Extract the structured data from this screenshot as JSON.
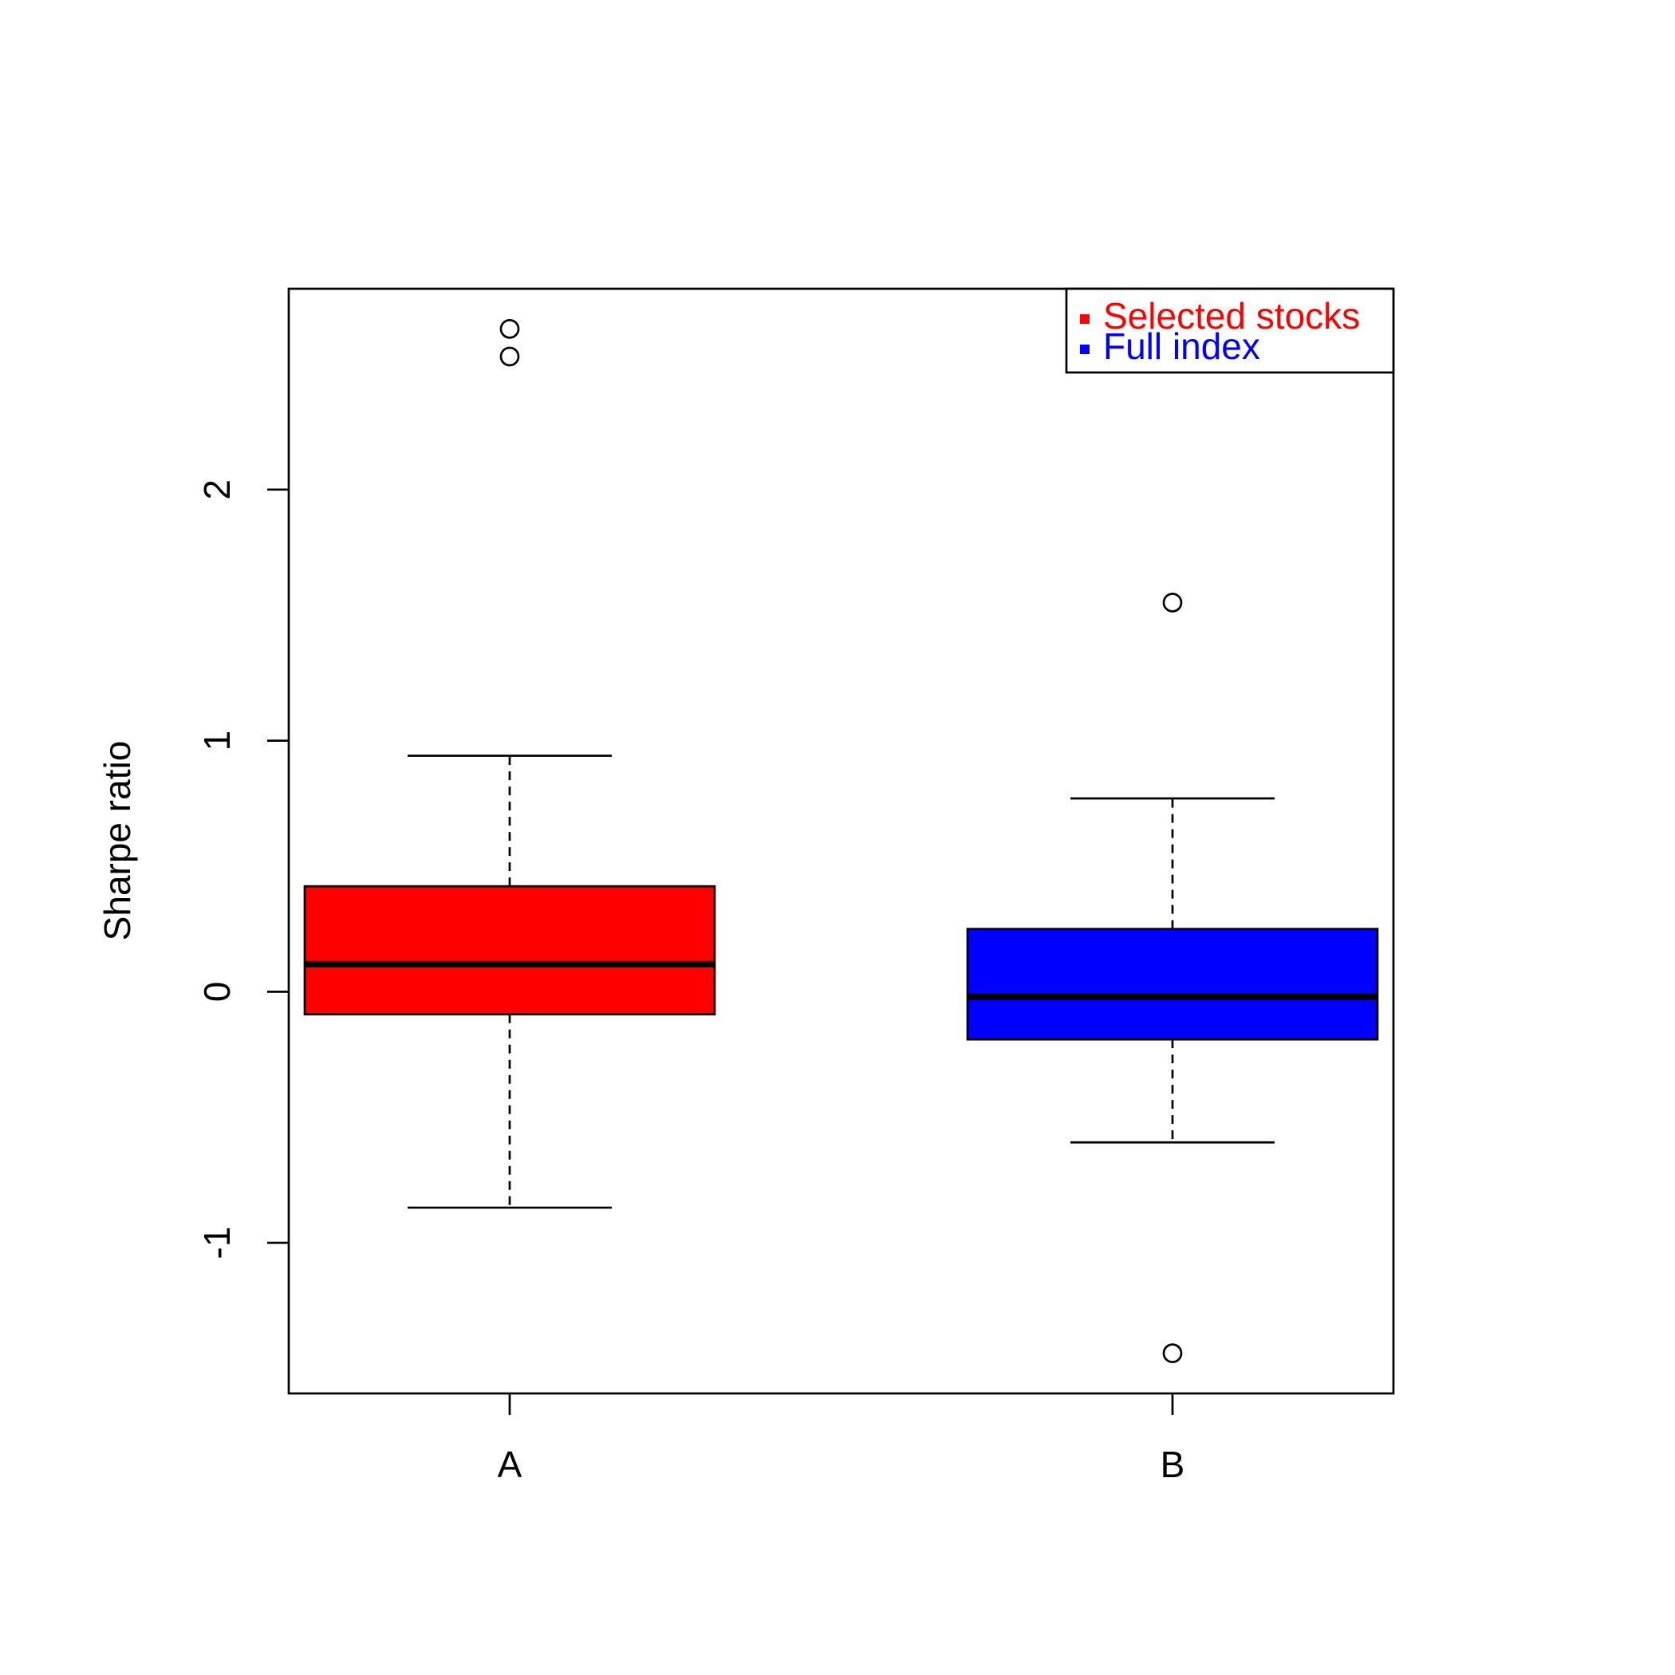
{
  "chart_data": {
    "type": "boxplot",
    "y_label": "Sharpe ratio",
    "categories": [
      "A",
      "B"
    ],
    "series": [
      {
        "name": "Selected stocks",
        "color": "#ff0000",
        "min": -0.86,
        "q1": -0.09,
        "median": 0.11,
        "q3": 0.42,
        "max": 0.94,
        "outliers": [
          2.64,
          2.53
        ]
      },
      {
        "name": "Full index",
        "color": "#0000ff",
        "min": -0.6,
        "q1": -0.19,
        "median": -0.02,
        "q3": 0.25,
        "max": 0.77,
        "outliers": [
          1.55,
          -1.44
        ]
      }
    ],
    "ylim": [
      -1.6,
      2.8
    ],
    "yticks": [
      -1,
      0,
      1,
      2
    ],
    "legend_position": "top-right",
    "grid": false
  }
}
